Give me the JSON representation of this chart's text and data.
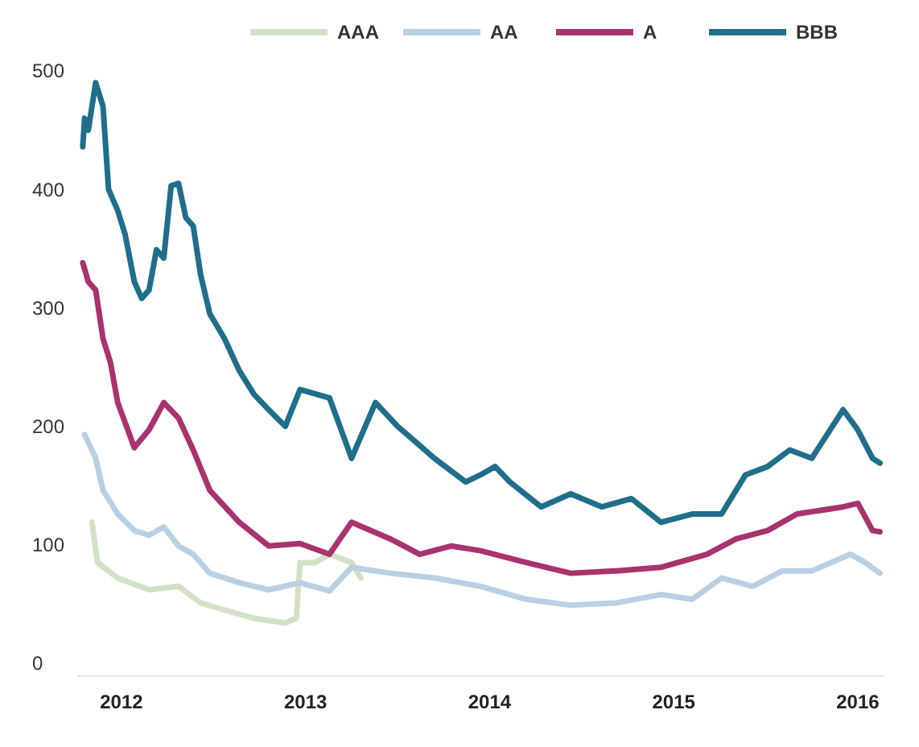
{
  "chart_data": {
    "type": "line",
    "xlim": [
      2011.76,
      2016.14
    ],
    "xticks": [
      2012,
      2013,
      2014,
      2015,
      2016
    ],
    "ylim": [
      0,
      500
    ],
    "yticks": [
      0,
      100,
      200,
      300,
      400,
      500
    ],
    "grid": false,
    "legend": "top",
    "marker": "none",
    "line_style": "solid",
    "series": [
      {
        "name": "AAA",
        "color": "#d3e2c6",
        "x": [
          2011.84,
          2011.87,
          2011.98,
          2012.15,
          2012.31,
          2012.43,
          2012.56,
          2012.72,
          2012.89,
          2012.95,
          2012.97,
          2013.05,
          2013.13,
          2013.25,
          2013.3
        ],
        "values": [
          119,
          85,
          72,
          62,
          65,
          51,
          45,
          38,
          34,
          38,
          85,
          85,
          92,
          85,
          72
        ]
      },
      {
        "name": "AA",
        "color": "#b9d0e3",
        "x": [
          2011.8,
          2011.86,
          2011.9,
          2011.98,
          2012.07,
          2012.15,
          2012.23,
          2012.31,
          2012.39,
          2012.48,
          2012.64,
          2012.8,
          2012.97,
          2013.13,
          2013.25,
          2013.46,
          2013.7,
          2013.95,
          2014.2,
          2014.44,
          2014.69,
          2014.93,
          2015.1,
          2015.26,
          2015.43,
          2015.59,
          2015.75,
          2015.96,
          2016.04,
          2016.12
        ],
        "values": [
          193,
          173,
          146,
          126,
          112,
          108,
          115,
          99,
          92,
          76,
          68,
          62,
          68,
          61,
          81,
          76,
          72,
          65,
          54,
          49,
          51,
          58,
          54,
          72,
          65,
          78,
          78,
          92,
          85,
          76
        ]
      },
      {
        "name": "A",
        "color": "#a8336e",
        "x": [
          2011.79,
          2011.82,
          2011.86,
          2011.9,
          2011.94,
          2011.98,
          2012.07,
          2012.15,
          2012.23,
          2012.31,
          2012.39,
          2012.48,
          2012.64,
          2012.8,
          2012.97,
          2013.13,
          2013.25,
          2013.46,
          2013.62,
          2013.79,
          2013.95,
          2014.2,
          2014.44,
          2014.69,
          2014.93,
          2015.18,
          2015.34,
          2015.51,
          2015.67,
          2015.92,
          2016.0,
          2016.08,
          2016.12
        ],
        "values": [
          338,
          322,
          315,
          274,
          254,
          220,
          182,
          197,
          220,
          207,
          180,
          146,
          119,
          99,
          101,
          92,
          119,
          105,
          92,
          99,
          95,
          85,
          76,
          78,
          81,
          92,
          105,
          112,
          126,
          132,
          135,
          112,
          111
        ]
      },
      {
        "name": "BBB",
        "color": "#1f6e8c",
        "x": [
          2011.79,
          2011.8,
          2011.82,
          2011.86,
          2011.9,
          2011.93,
          2011.98,
          2012.02,
          2012.07,
          2012.11,
          2012.15,
          2012.19,
          2012.23,
          2012.27,
          2012.31,
          2012.35,
          2012.39,
          2012.43,
          2012.48,
          2012.56,
          2012.64,
          2012.72,
          2012.8,
          2012.89,
          2012.97,
          2013.13,
          2013.25,
          2013.38,
          2013.5,
          2013.7,
          2013.87,
          2013.95,
          2014.03,
          2014.11,
          2014.28,
          2014.44,
          2014.61,
          2014.77,
          2014.93,
          2015.1,
          2015.26,
          2015.39,
          2015.51,
          2015.63,
          2015.75,
          2015.92,
          2016.0,
          2016.08,
          2016.12
        ],
        "values": [
          436,
          460,
          450,
          490,
          470,
          400,
          382,
          362,
          322,
          308,
          315,
          349,
          342,
          403,
          405,
          376,
          369,
          328,
          295,
          274,
          247,
          227,
          214,
          200,
          231,
          224,
          173,
          220,
          200,
          173,
          153,
          159,
          166,
          153,
          132,
          143,
          132,
          139,
          119,
          126,
          126,
          159,
          166,
          180,
          173,
          214,
          197,
          173,
          169
        ]
      }
    ]
  }
}
